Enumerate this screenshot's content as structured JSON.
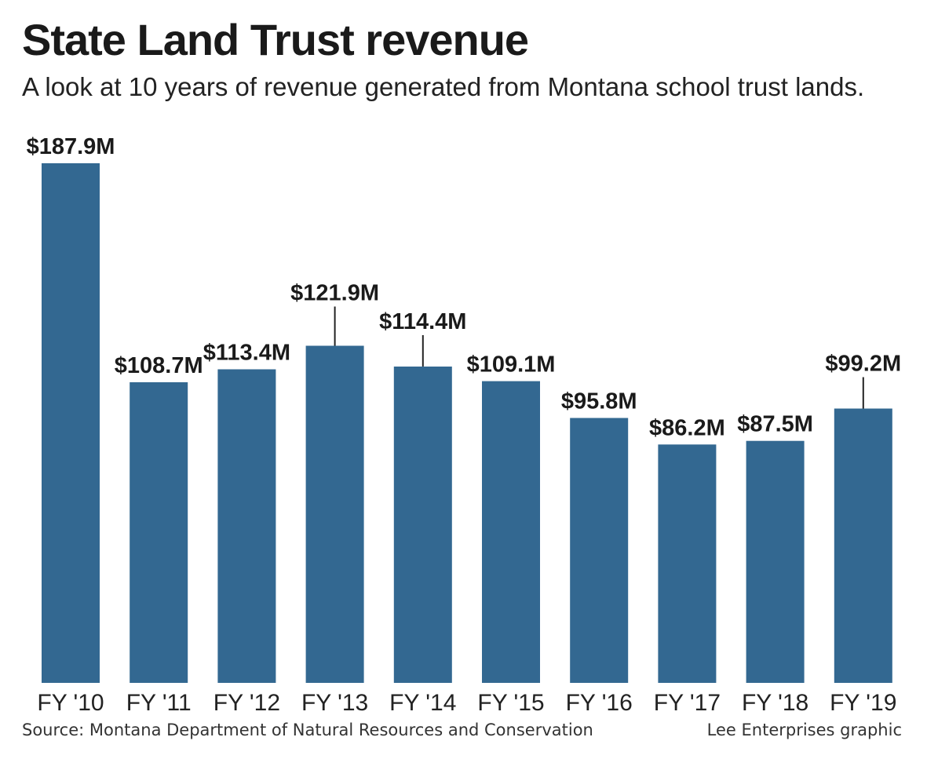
{
  "header": {
    "title": "State Land Trust revenue",
    "subtitle": "A look at 10 years of revenue generated from Montana school trust lands."
  },
  "footer": {
    "source": "Source: Montana Department of Natural Resources and Conservation",
    "credit": "Lee Enterprises graphic"
  },
  "chart_data": {
    "type": "bar",
    "title": "State Land Trust revenue",
    "subtitle": "A look at 10 years of revenue generated from Montana school trust lands.",
    "categories": [
      "FY '10",
      "FY '11",
      "FY '12",
      "FY '13",
      "FY '14",
      "FY '15",
      "FY '16",
      "FY '17",
      "FY '18",
      "FY '19"
    ],
    "values": [
      187.9,
      108.7,
      113.4,
      121.9,
      114.4,
      109.1,
      95.8,
      86.2,
      87.5,
      99.2
    ],
    "labels": [
      "$187.9M",
      "$108.7M",
      "$113.4M",
      "$121.9M",
      "$114.4M",
      "$109.1M",
      "$95.8M",
      "$86.2M",
      "$87.5M",
      "$99.2M"
    ],
    "units": "millions of dollars",
    "xlabel": "",
    "ylabel": "",
    "ylim": [
      0,
      187.9
    ],
    "grid": false,
    "bar_color": "#336891",
    "text_color": "#1a1a1a"
  }
}
